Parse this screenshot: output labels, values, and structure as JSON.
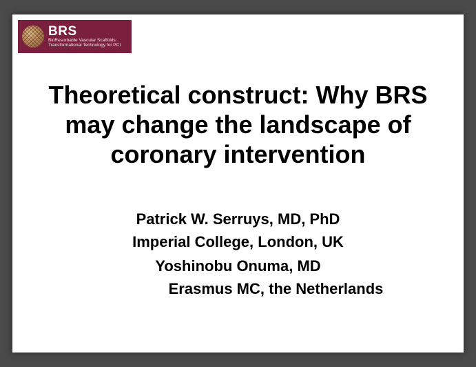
{
  "logo": {
    "acronym": "BRS",
    "sub_line1": "BioResorbable Vascular Scaffolds:",
    "sub_line2": "Transformational Technology for PCI",
    "banner_bg": "#7b1f3e",
    "text_color": "#ffffff"
  },
  "title": "Theoretical construct: Why BRS may change the landscape of coronary intervention",
  "authors": {
    "author1_name": "Patrick W. Serruys, MD, PhD",
    "author1_affil": "Imperial College, London, UK",
    "author2_name": "Yoshinobu Onuma, MD",
    "author2_affil": "Erasmus MC, the Netherlands"
  },
  "style": {
    "slide_bg": "#ffffff",
    "canvas_bg": "#4a4a4a",
    "title_fontsize": 36,
    "title_color": "#000000",
    "author_fontsize": 22,
    "author_color": "#000000",
    "font_family": "Arial"
  }
}
